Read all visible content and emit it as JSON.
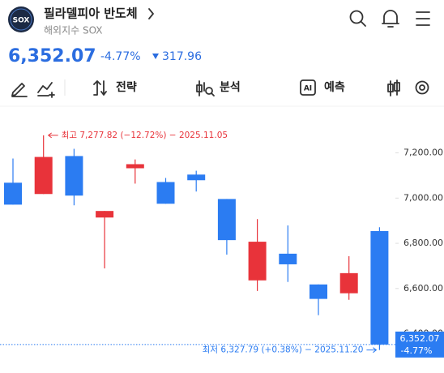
{
  "header": {
    "logo": "SOX",
    "title": "필라델피아 반도체",
    "subtitle": "해외지수 SOX"
  },
  "quote": {
    "price": "6,352.07",
    "change_pct": "-4.77%",
    "change": "317.96"
  },
  "toolbar": {
    "strategy": "전략",
    "analysis": "분석",
    "ai": "AI",
    "forecast": "예측"
  },
  "chart_data": {
    "type": "candlestick",
    "open": [
      7068,
      7018,
      7186,
      6914,
      7132,
      7071,
      7104,
      6996,
      6636,
      6754,
      6618,
      6579,
      6854
    ],
    "high": [
      7175,
      7277.82,
      7218,
      6943,
      7171,
      7089,
      7121,
      6996,
      6907,
      6879,
      6618,
      6743,
      6871
    ],
    "low": [
      6971,
      7018,
      6968,
      6689,
      7064,
      6975,
      7029,
      6750,
      6589,
      6629,
      6482,
      6550,
      6327.79
    ],
    "close": [
      6971,
      7182,
      7011,
      6943,
      7150,
      6975,
      7079,
      6814,
      6807,
      6707,
      6554,
      6668,
      6352.07
    ],
    "up_color": "#e8333a",
    "down_color": "#2b7cf2",
    "ylim": [
      6280,
      7410
    ],
    "yticks": [
      {
        "value": 6400,
        "label": "6,400.00"
      },
      {
        "value": 6600,
        "label": "6,600.00"
      },
      {
        "value": 6800,
        "label": "6,800.00"
      },
      {
        "value": 7000,
        "label": "7,000.00"
      },
      {
        "value": 7200,
        "label": "7,200.00"
      }
    ],
    "high_annotation": "최고 7,277.82 (−12.72%) − 2025.11.05",
    "low_annotation": "최저 6,327.79 (+0.38%) − 2025.11.20",
    "last_label": "6,352.07",
    "last_change": "-4.77%"
  }
}
